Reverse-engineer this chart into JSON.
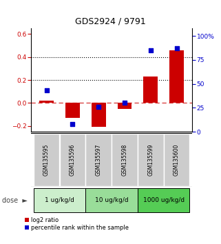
{
  "title": "GDS2924 / 9791",
  "samples": [
    "GSM135595",
    "GSM135596",
    "GSM135597",
    "GSM135598",
    "GSM135599",
    "GSM135600"
  ],
  "log2_ratio": [
    0.02,
    -0.13,
    -0.21,
    -0.05,
    0.23,
    0.46
  ],
  "percentile_rank": [
    43,
    8,
    26,
    30,
    85,
    87
  ],
  "doses": [
    {
      "label": "1 ug/kg/d",
      "start": 0,
      "end": 2
    },
    {
      "label": "10 ug/kg/d",
      "start": 2,
      "end": 4
    },
    {
      "label": "1000 ug/kg/d",
      "start": 4,
      "end": 6
    }
  ],
  "bar_color": "#cc0000",
  "dot_color": "#0000cc",
  "ylim_left": [
    -0.25,
    0.65
  ],
  "ylim_right": [
    0,
    108
  ],
  "yticks_left": [
    -0.2,
    0.0,
    0.2,
    0.4,
    0.6
  ],
  "yticks_right": [
    0,
    25,
    50,
    75,
    100
  ],
  "ytick_labels_right": [
    "0",
    "25",
    "50",
    "75",
    "100%"
  ],
  "hline_values": [
    0.2,
    0.4
  ],
  "left_tick_color": "#cc0000",
  "right_tick_color": "#0000cc",
  "bar_width": 0.55,
  "dot_size": 25,
  "legend_red_label": "log2 ratio",
  "legend_blue_label": "percentile rank within the sample",
  "sample_box_color": "#cccccc",
  "dose_colors": [
    "#cceecc",
    "#99dd99",
    "#55cc55"
  ],
  "dose_border_color": "#000000"
}
